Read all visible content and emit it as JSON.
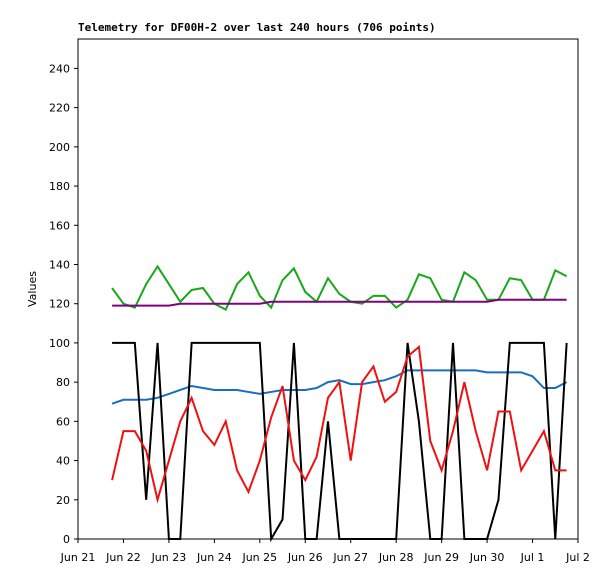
{
  "chart_data": {
    "type": "line",
    "title": "Telemetry for DF00H-2 over last 240 hours (706 points)",
    "y_label": "Values",
    "x": [
      0.75,
      1.0,
      1.25,
      1.5,
      1.75,
      2.0,
      2.25,
      2.5,
      2.75,
      3.0,
      3.25,
      3.5,
      3.75,
      4.0,
      4.25,
      4.5,
      4.75,
      5.0,
      5.25,
      5.5,
      5.75,
      6.0,
      6.25,
      6.5,
      6.75,
      7.0,
      7.25,
      7.5,
      7.75,
      8.0,
      8.25,
      8.5,
      8.75,
      9.0,
      9.25,
      9.5,
      9.75,
      10.0,
      10.25,
      10.5,
      10.75
    ],
    "series": [
      {
        "color": "#18a818",
        "values": [
          128,
          120,
          118,
          130,
          139,
          130,
          121,
          127,
          128,
          120,
          117,
          130,
          136,
          124,
          118,
          132,
          138,
          126,
          121,
          133,
          125,
          121,
          120,
          124,
          124,
          118,
          122,
          135,
          133,
          122,
          121,
          136,
          132,
          122,
          122,
          133,
          132,
          122,
          122,
          137,
          134
        ]
      },
      {
        "color": "#800080",
        "values": [
          119,
          119,
          119,
          119,
          119,
          119,
          120,
          120,
          120,
          120,
          120,
          120,
          120,
          120,
          121,
          121,
          121,
          121,
          121,
          121,
          121,
          121,
          121,
          121,
          121,
          121,
          121,
          121,
          121,
          121,
          121,
          121,
          121,
          121,
          122,
          122,
          122,
          122,
          122,
          122,
          122
        ]
      },
      {
        "color": "#1a6ec0",
        "values": [
          69,
          71,
          71,
          71,
          72,
          74,
          76,
          78,
          77,
          76,
          76,
          76,
          75,
          74,
          75,
          76,
          76,
          76,
          77,
          80,
          81,
          79,
          79,
          80,
          81,
          83,
          86,
          86,
          86,
          86,
          86,
          86,
          86,
          85,
          85,
          85,
          85,
          83,
          77,
          77,
          80
        ]
      },
      {
        "color": "#000000",
        "values": [
          100,
          100,
          100,
          20,
          100,
          0,
          0,
          100,
          100,
          100,
          100,
          100,
          100,
          100,
          0,
          10,
          100,
          0,
          0,
          60,
          0,
          0,
          0,
          0,
          0,
          0,
          100,
          60,
          0,
          0,
          100,
          0,
          0,
          0,
          20,
          100,
          100,
          100,
          100,
          0,
          100
        ]
      },
      {
        "color": "#ee1111",
        "values": [
          30,
          55,
          55,
          45,
          20,
          40,
          60,
          72,
          55,
          48,
          60,
          35,
          24,
          40,
          62,
          78,
          40,
          30,
          42,
          72,
          80,
          40,
          80,
          88,
          70,
          75,
          93,
          98,
          50,
          35,
          55,
          80,
          55,
          35,
          65,
          65,
          35,
          45,
          55,
          35,
          35
        ]
      }
    ],
    "xlim": [
      0,
      11
    ],
    "xticks": [
      {
        "value": 0,
        "label": "Jun 21"
      },
      {
        "value": 1,
        "label": "Jun 22"
      },
      {
        "value": 2,
        "label": "Jun 23"
      },
      {
        "value": 3,
        "label": "Jun 24"
      },
      {
        "value": 4,
        "label": "Jun 25"
      },
      {
        "value": 5,
        "label": "Jun 26"
      },
      {
        "value": 6,
        "label": "Jun 27"
      },
      {
        "value": 7,
        "label": "Jun 28"
      },
      {
        "value": 8,
        "label": "Jun 29"
      },
      {
        "value": 9,
        "label": "Jun 30"
      },
      {
        "value": 10,
        "label": "Jul 1"
      },
      {
        "value": 11,
        "label": "Jul 2"
      }
    ],
    "ylim": [
      0,
      255
    ],
    "yticks": [
      0,
      20,
      40,
      60,
      80,
      100,
      120,
      140,
      160,
      180,
      200,
      220,
      240
    ],
    "grid": false
  }
}
